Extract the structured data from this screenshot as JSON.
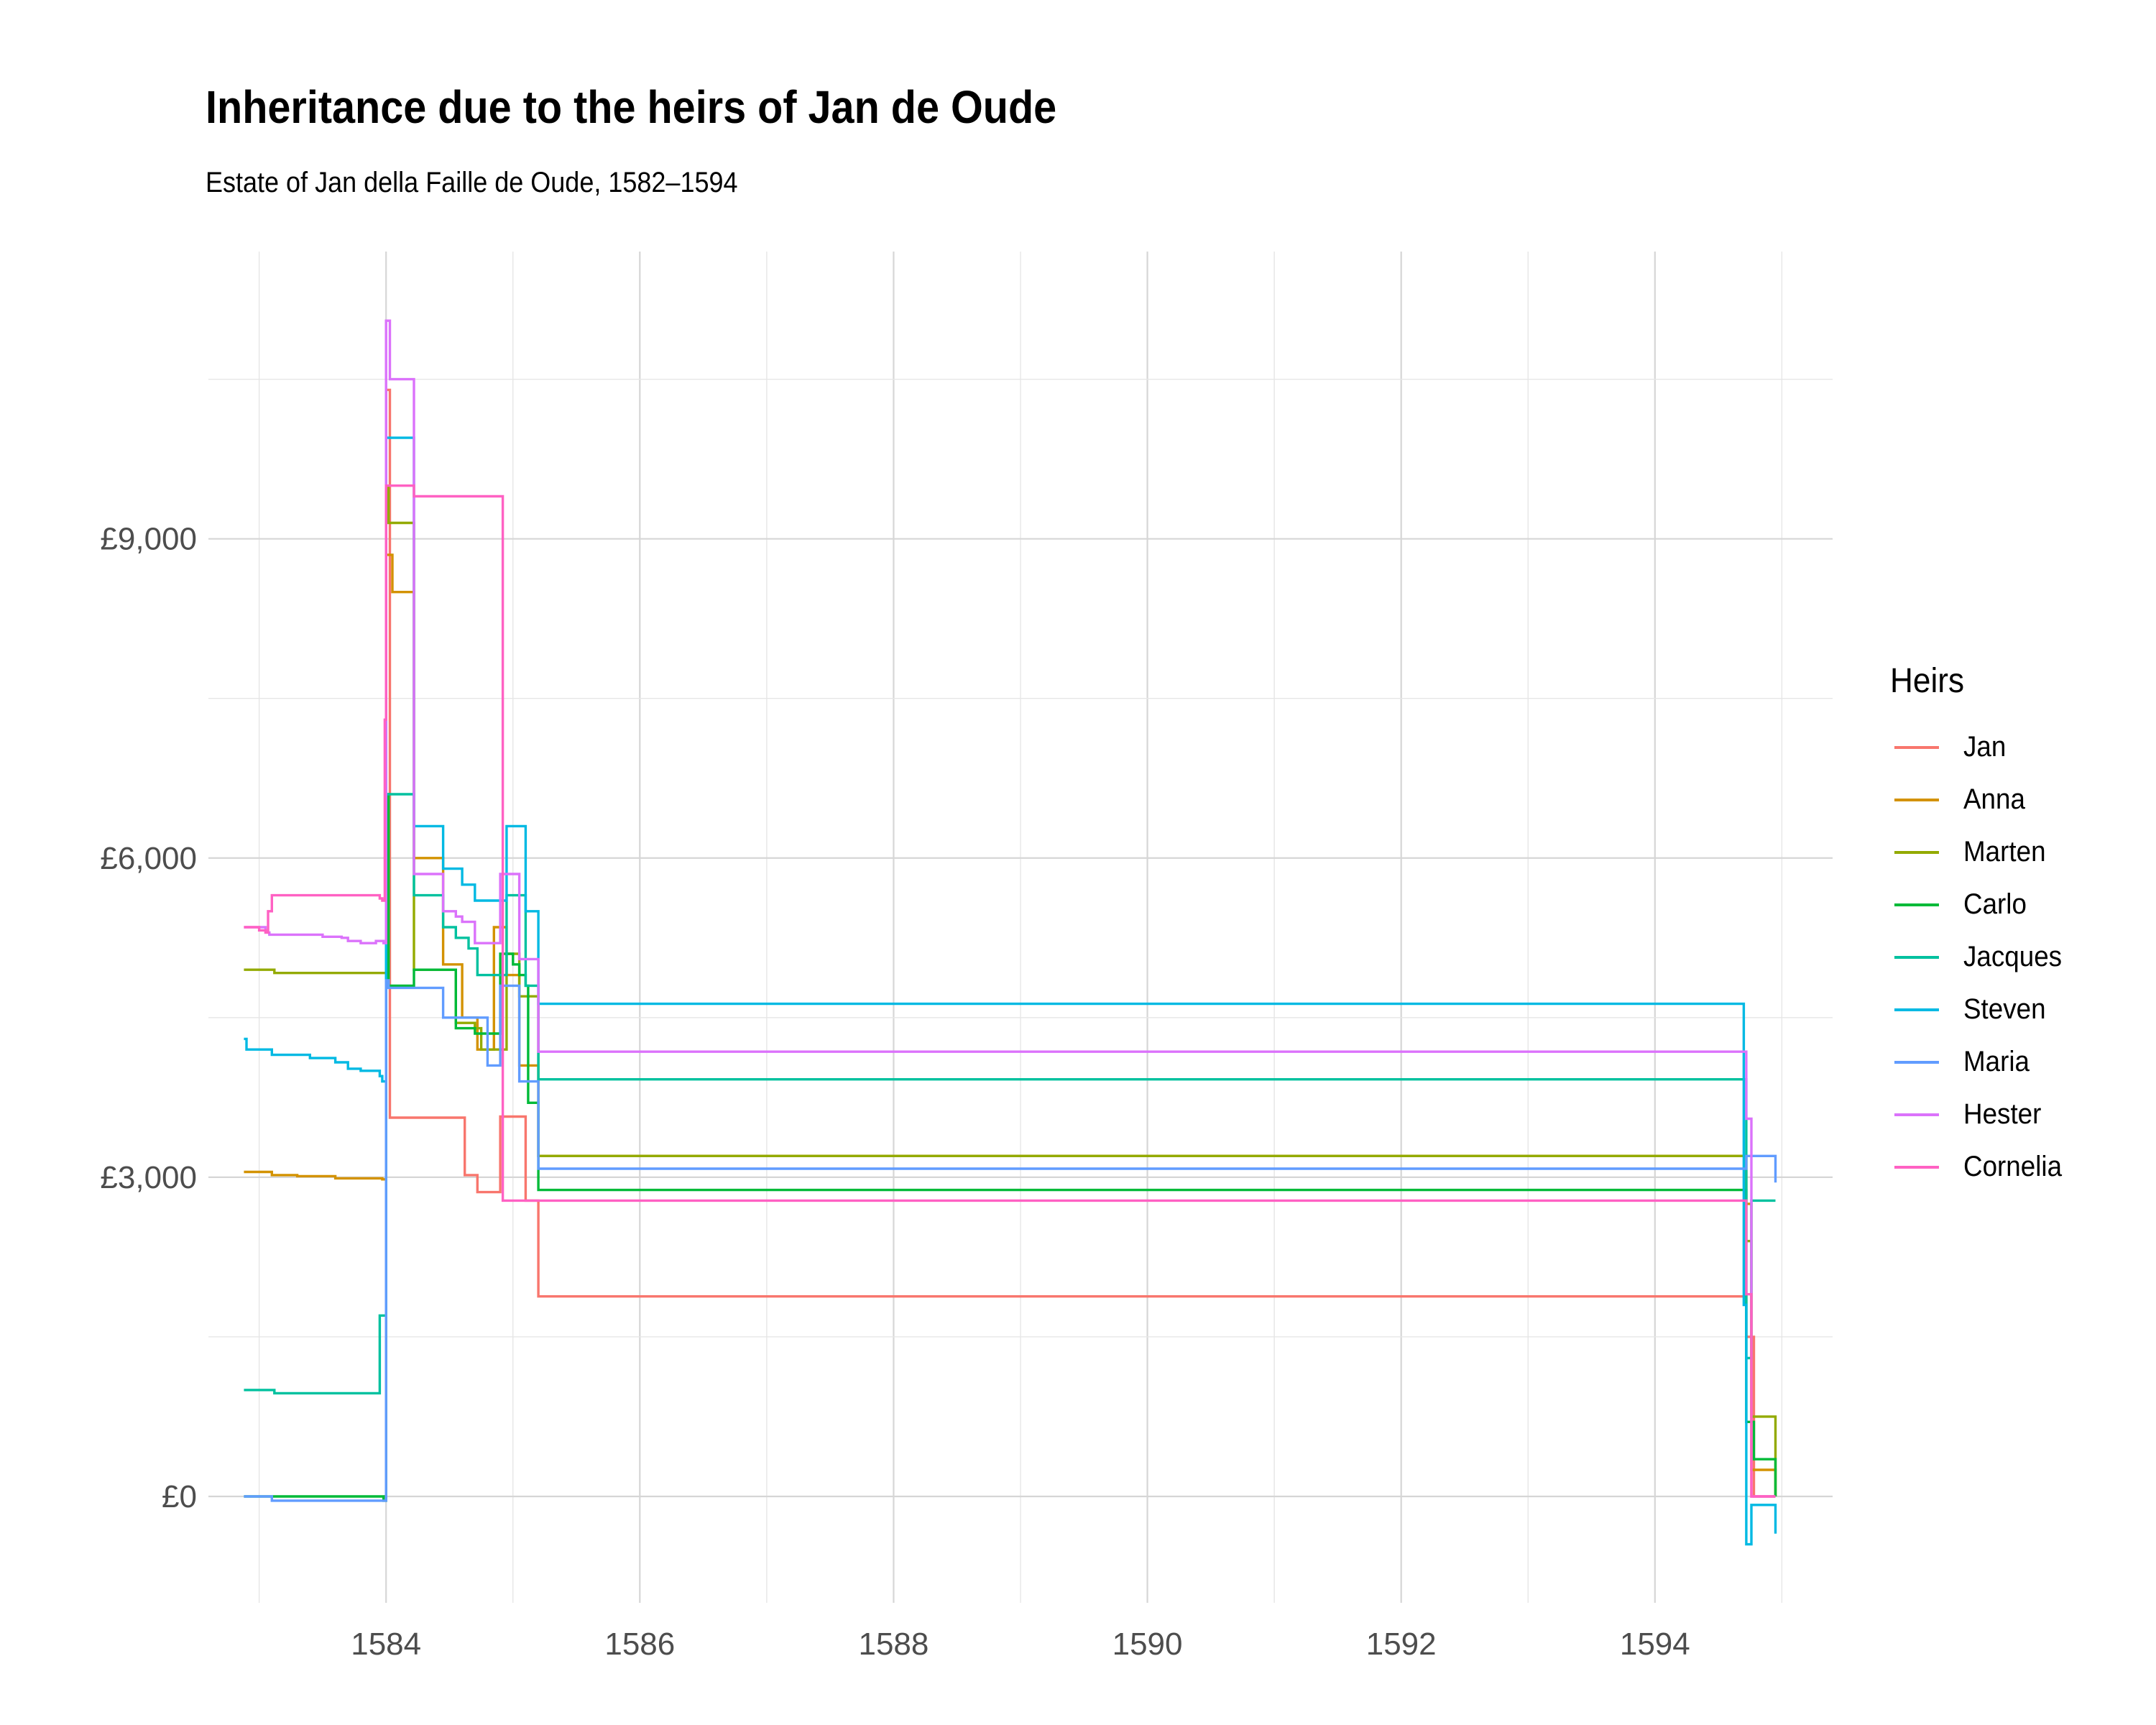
{
  "title": "Inheritance due to the heirs of Jan de Oude",
  "subtitle": "Estate of Jan della Faille de Oude, 1582–1594",
  "legend": {
    "title": "Heirs",
    "items": [
      {
        "label": "Jan",
        "color": "#F8766D"
      },
      {
        "label": "Anna",
        "color": "#D39200"
      },
      {
        "label": "Marten",
        "color": "#93AA00"
      },
      {
        "label": "Carlo",
        "color": "#00BA38"
      },
      {
        "label": "Jacques",
        "color": "#00C19F"
      },
      {
        "label": "Steven",
        "color": "#00B9E3"
      },
      {
        "label": "Maria",
        "color": "#619CFF"
      },
      {
        "label": "Hester",
        "color": "#DB72FB"
      },
      {
        "label": "Cornelia",
        "color": "#FF61C3"
      }
    ]
  },
  "chart_data": {
    "type": "line",
    "step": true,
    "title": "Inheritance due to the heirs of Jan de Oude",
    "subtitle": "Estate of Jan della Faille de Oude, 1582–1594",
    "xlabel": "",
    "ylabel": "",
    "xlim": [
      1582.6,
      1595.4
    ],
    "ylim": [
      -1000,
      11700
    ],
    "x_ticks": [
      1584,
      1586,
      1588,
      1590,
      1592,
      1594
    ],
    "x_tick_labels": [
      "1584",
      "1586",
      "1588",
      "1590",
      "1592",
      "1594"
    ],
    "y_ticks": [
      0,
      3000,
      6000,
      9000
    ],
    "y_tick_labels": [
      "£0",
      "£3,000",
      "£6,000",
      "£9,000"
    ],
    "grid": true,
    "legend_position": "right",
    "series": [
      {
        "name": "Jan",
        "color": "#F8766D",
        "points": [
          [
            1583.98,
            0
          ],
          [
            1584.0,
            10400
          ],
          [
            1584.03,
            3560
          ],
          [
            1584.62,
            3560
          ],
          [
            1584.62,
            3020
          ],
          [
            1584.72,
            2860
          ],
          [
            1584.9,
            2860
          ],
          [
            1584.9,
            3570
          ],
          [
            1585.1,
            3570
          ],
          [
            1585.1,
            2780
          ],
          [
            1585.2,
            2780
          ],
          [
            1585.2,
            1880
          ],
          [
            1594.7,
            1880
          ],
          [
            1594.72,
            1500
          ],
          [
            1594.78,
            0
          ],
          [
            1594.95,
            0
          ]
        ]
      },
      {
        "name": "Anna",
        "color": "#D39200",
        "points": [
          [
            1582.88,
            3050
          ],
          [
            1583.1,
            3020
          ],
          [
            1583.3,
            3010
          ],
          [
            1583.6,
            2990
          ],
          [
            1583.97,
            2980
          ],
          [
            1584.0,
            8850
          ],
          [
            1584.05,
            8500
          ],
          [
            1584.22,
            8500
          ],
          [
            1584.22,
            6000
          ],
          [
            1584.45,
            5850
          ],
          [
            1584.45,
            5000
          ],
          [
            1584.6,
            4500
          ],
          [
            1584.72,
            4200
          ],
          [
            1584.85,
            4200
          ],
          [
            1584.85,
            5350
          ],
          [
            1584.95,
            5350
          ],
          [
            1584.95,
            4900
          ],
          [
            1585.05,
            4900
          ],
          [
            1585.05,
            4050
          ],
          [
            1585.2,
            4050
          ],
          [
            1585.2,
            3200
          ],
          [
            1594.7,
            3200
          ],
          [
            1594.72,
            2750
          ],
          [
            1594.76,
            250
          ],
          [
            1594.95,
            250
          ],
          [
            1594.95,
            0
          ]
        ]
      },
      {
        "name": "Marten",
        "color": "#93AA00",
        "points": [
          [
            1582.88,
            4950
          ],
          [
            1583.1,
            4950
          ],
          [
            1583.12,
            4920
          ],
          [
            1583.98,
            4920
          ],
          [
            1584.0,
            9500
          ],
          [
            1584.02,
            9150
          ],
          [
            1584.2,
            9150
          ],
          [
            1584.22,
            8000
          ],
          [
            1584.22,
            4950
          ],
          [
            1584.5,
            4950
          ],
          [
            1584.55,
            4450
          ],
          [
            1584.7,
            4400
          ],
          [
            1584.75,
            4200
          ],
          [
            1584.95,
            4200
          ],
          [
            1584.95,
            5100
          ],
          [
            1585.05,
            5100
          ],
          [
            1585.05,
            4700
          ],
          [
            1585.2,
            4700
          ],
          [
            1585.2,
            3200
          ],
          [
            1594.7,
            3200
          ],
          [
            1594.72,
            2400
          ],
          [
            1594.76,
            750
          ],
          [
            1594.95,
            750
          ],
          [
            1594.95,
            0
          ]
        ]
      },
      {
        "name": "Carlo",
        "color": "#00BA38",
        "points": [
          [
            1582.88,
            0
          ],
          [
            1583.98,
            -40
          ],
          [
            1584.0,
            6600
          ],
          [
            1584.02,
            4800
          ],
          [
            1584.2,
            4800
          ],
          [
            1584.22,
            4950
          ],
          [
            1584.5,
            4950
          ],
          [
            1584.55,
            4400
          ],
          [
            1584.7,
            4350
          ],
          [
            1584.9,
            4350
          ],
          [
            1584.9,
            5100
          ],
          [
            1585.0,
            5000
          ],
          [
            1585.05,
            4900
          ],
          [
            1585.1,
            4800
          ],
          [
            1585.12,
            3700
          ],
          [
            1585.2,
            3700
          ],
          [
            1585.2,
            2880
          ],
          [
            1594.7,
            2880
          ],
          [
            1594.72,
            700
          ],
          [
            1594.78,
            350
          ],
          [
            1594.95,
            350
          ],
          [
            1594.95,
            0
          ]
        ]
      },
      {
        "name": "Jacques",
        "color": "#00C19F",
        "points": [
          [
            1582.88,
            1000
          ],
          [
            1583.1,
            1000
          ],
          [
            1583.12,
            970
          ],
          [
            1583.95,
            970
          ],
          [
            1583.95,
            1700
          ],
          [
            1584.0,
            6600
          ],
          [
            1584.2,
            6600
          ],
          [
            1584.22,
            5650
          ],
          [
            1584.45,
            5650
          ],
          [
            1584.45,
            5350
          ],
          [
            1584.55,
            5250
          ],
          [
            1584.65,
            5150
          ],
          [
            1584.72,
            4900
          ],
          [
            1584.95,
            4900
          ],
          [
            1584.95,
            5650
          ],
          [
            1585.1,
            5650
          ],
          [
            1585.1,
            4800
          ],
          [
            1585.2,
            4800
          ],
          [
            1585.2,
            3920
          ],
          [
            1594.7,
            3920
          ],
          [
            1594.72,
            1300
          ],
          [
            1594.76,
            2780
          ],
          [
            1594.95,
            2780
          ]
        ]
      },
      {
        "name": "Steven",
        "color": "#00B9E3",
        "points": [
          [
            1582.88,
            4300
          ],
          [
            1582.9,
            4200
          ],
          [
            1583.1,
            4150
          ],
          [
            1583.4,
            4120
          ],
          [
            1583.6,
            4080
          ],
          [
            1583.7,
            4020
          ],
          [
            1583.8,
            4000
          ],
          [
            1583.95,
            3950
          ],
          [
            1583.97,
            3900
          ],
          [
            1584.0,
            9950
          ],
          [
            1584.2,
            9950
          ],
          [
            1584.22,
            6300
          ],
          [
            1584.45,
            6300
          ],
          [
            1584.45,
            5900
          ],
          [
            1584.6,
            5900
          ],
          [
            1584.6,
            5750
          ],
          [
            1584.7,
            5750
          ],
          [
            1584.7,
            5600
          ],
          [
            1584.95,
            5600
          ],
          [
            1584.95,
            6300
          ],
          [
            1585.1,
            6300
          ],
          [
            1585.1,
            5500
          ],
          [
            1585.2,
            5500
          ],
          [
            1585.2,
            4630
          ],
          [
            1594.7,
            4630
          ],
          [
            1594.7,
            1800
          ],
          [
            1594.72,
            -450
          ],
          [
            1594.76,
            -450
          ],
          [
            1594.76,
            -80
          ],
          [
            1594.95,
            -80
          ],
          [
            1594.95,
            -350
          ]
        ]
      },
      {
        "name": "Maria",
        "color": "#619CFF",
        "points": [
          [
            1582.88,
            0
          ],
          [
            1583.1,
            0
          ],
          [
            1583.1,
            -40
          ],
          [
            1583.98,
            -40
          ],
          [
            1584.0,
            4850
          ],
          [
            1584.02,
            4780
          ],
          [
            1584.4,
            4780
          ],
          [
            1584.45,
            4500
          ],
          [
            1584.8,
            4500
          ],
          [
            1584.8,
            4050
          ],
          [
            1584.9,
            4050
          ],
          [
            1584.9,
            4800
          ],
          [
            1585.05,
            4800
          ],
          [
            1585.05,
            3900
          ],
          [
            1585.2,
            3900
          ],
          [
            1585.2,
            3080
          ],
          [
            1594.7,
            3080
          ],
          [
            1594.72,
            3200
          ],
          [
            1594.95,
            3200
          ],
          [
            1594.95,
            2950
          ]
        ]
      },
      {
        "name": "Hester",
        "color": "#DB72FB",
        "points": [
          [
            1582.88,
            5350
          ],
          [
            1583.05,
            5300
          ],
          [
            1583.08,
            5280
          ],
          [
            1583.5,
            5260
          ],
          [
            1583.65,
            5250
          ],
          [
            1583.7,
            5220
          ],
          [
            1583.8,
            5200
          ],
          [
            1583.92,
            5220
          ],
          [
            1583.98,
            5200
          ],
          [
            1584.0,
            11050
          ],
          [
            1584.03,
            10500
          ],
          [
            1584.2,
            10500
          ],
          [
            1584.22,
            5850
          ],
          [
            1584.45,
            5850
          ],
          [
            1584.45,
            5500
          ],
          [
            1584.55,
            5450
          ],
          [
            1584.6,
            5400
          ],
          [
            1584.7,
            5200
          ],
          [
            1584.9,
            5200
          ],
          [
            1584.9,
            5850
          ],
          [
            1585.05,
            5850
          ],
          [
            1585.05,
            5050
          ],
          [
            1585.2,
            5050
          ],
          [
            1585.2,
            4180
          ],
          [
            1594.7,
            4180
          ],
          [
            1594.72,
            3550
          ],
          [
            1594.76,
            3450
          ],
          [
            1594.76,
            0
          ],
          [
            1594.95,
            0
          ]
        ]
      },
      {
        "name": "Cornelia",
        "color": "#FF61C3",
        "points": [
          [
            1582.88,
            5350
          ],
          [
            1583.0,
            5320
          ],
          [
            1583.05,
            5300
          ],
          [
            1583.07,
            5500
          ],
          [
            1583.1,
            5650
          ],
          [
            1583.95,
            5620
          ],
          [
            1583.97,
            5600
          ],
          [
            1583.99,
            7300
          ],
          [
            1584.0,
            9500
          ],
          [
            1584.2,
            9500
          ],
          [
            1584.22,
            9400
          ],
          [
            1584.92,
            9400
          ],
          [
            1584.92,
            2780
          ],
          [
            1585.2,
            2780
          ],
          [
            1585.2,
            2780
          ],
          [
            1594.7,
            2780
          ],
          [
            1594.72,
            1900
          ],
          [
            1594.76,
            0
          ],
          [
            1594.95,
            0
          ]
        ]
      }
    ]
  }
}
